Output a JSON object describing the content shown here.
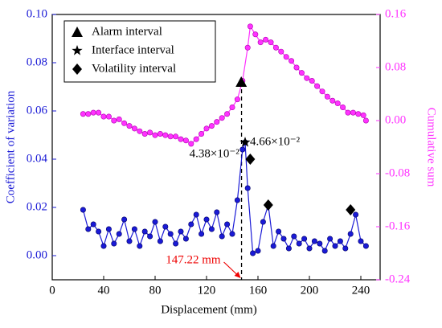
{
  "chart_data": {
    "type": "line",
    "xlabel": "Displacement (mm)",
    "ylabel": "Coefficient of variation",
    "y2label": "Cumulative sum",
    "xlim": [
      0,
      255
    ],
    "xticks": [
      0,
      40,
      80,
      120,
      160,
      200,
      240
    ],
    "ylim": [
      -0.01,
      0.1
    ],
    "yticks": [
      {
        "value": 0,
        "label": "0.00"
      },
      {
        "value": 0.02,
        "label": "0.02"
      },
      {
        "value": 0.04,
        "label": "0.04"
      },
      {
        "value": 0.06,
        "label": "0.06"
      },
      {
        "value": 0.08,
        "label": "0.08"
      },
      {
        "value": 0.1,
        "label": "0.10"
      }
    ],
    "y2lim": [
      -0.24,
      0.16
    ],
    "y2ticks": [
      {
        "value": -0.24,
        "label": "-0.24"
      },
      {
        "value": -0.16,
        "label": "-0.16"
      },
      {
        "value": -0.08,
        "label": "-0.08"
      },
      {
        "value": 0,
        "label": "0.00"
      },
      {
        "value": 0.08,
        "label": "0.08"
      },
      {
        "value": 0.16,
        "label": "0.16"
      }
    ],
    "series": [
      {
        "color": "#1a1ad6",
        "axis": "y",
        "x": [
          24,
          28,
          32,
          36,
          40,
          44,
          48,
          52,
          56,
          60,
          64,
          68,
          72,
          76,
          80,
          84,
          88,
          92,
          96,
          100,
          104,
          108,
          112,
          116,
          120,
          124,
          128,
          132,
          136,
          140,
          144,
          148,
          150,
          152,
          156,
          160,
          164,
          168,
          172,
          176,
          180,
          184,
          188,
          192,
          196,
          200,
          204,
          208,
          212,
          216,
          220,
          224,
          228,
          232,
          236,
          240,
          244
        ],
        "values": [
          0.019,
          0.011,
          0.013,
          0.01,
          0.004,
          0.011,
          0.005,
          0.009,
          0.015,
          0.006,
          0.011,
          0.004,
          0.01,
          0.008,
          0.014,
          0.006,
          0.012,
          0.009,
          0.005,
          0.01,
          0.007,
          0.013,
          0.017,
          0.009,
          0.015,
          0.011,
          0.018,
          0.008,
          0.013,
          0.009,
          0.023,
          0.044,
          0.047,
          0.028,
          0.001,
          0.002,
          0.014,
          0.021,
          0.004,
          0.01,
          0.007,
          0.003,
          0.008,
          0.005,
          0.007,
          0.003,
          0.006,
          0.005,
          0.002,
          0.007,
          0.004,
          0.006,
          0.003,
          0.009,
          0.017,
          0.006,
          0.004
        ]
      },
      {
        "color": "#ff33ff",
        "axis": "y2",
        "x": [
          24,
          28,
          32,
          36,
          40,
          44,
          48,
          52,
          56,
          60,
          64,
          68,
          72,
          76,
          80,
          84,
          88,
          92,
          96,
          100,
          104,
          108,
          112,
          116,
          120,
          124,
          128,
          132,
          136,
          140,
          144,
          148,
          152,
          154,
          158,
          162,
          166,
          170,
          174,
          178,
          182,
          186,
          190,
          194,
          198,
          202,
          206,
          210,
          214,
          218,
          222,
          226,
          230,
          234,
          238,
          242,
          244
        ],
        "values": [
          0.01,
          0.01,
          0.012,
          0.012,
          0.006,
          0.006,
          0.0,
          0.002,
          -0.004,
          -0.008,
          -0.012,
          -0.016,
          -0.02,
          -0.018,
          -0.022,
          -0.02,
          -0.022,
          -0.024,
          -0.024,
          -0.028,
          -0.03,
          -0.035,
          -0.028,
          -0.02,
          -0.012,
          -0.008,
          -0.002,
          0.004,
          0.01,
          0.02,
          0.032,
          0.06,
          0.11,
          0.142,
          0.13,
          0.118,
          0.122,
          0.118,
          0.11,
          0.104,
          0.096,
          0.09,
          0.08,
          0.072,
          0.064,
          0.06,
          0.052,
          0.044,
          0.036,
          0.03,
          0.026,
          0.02,
          0.012,
          0.012,
          0.01,
          0.008,
          0.0
        ]
      }
    ],
    "markers": [
      {
        "name": "Alarm interval",
        "shape": "triangle",
        "x": [
          147
        ],
        "values": [
          0.072
        ]
      },
      {
        "name": "Interface interval",
        "shape": "star",
        "x": [
          150
        ],
        "values": [
          0.047
        ]
      },
      {
        "name": "Volatility interval",
        "shape": "diamond",
        "x": [
          154,
          168,
          232
        ],
        "values": [
          0.04,
          0.021,
          0.019
        ]
      }
    ],
    "annotations": [
      {
        "text": "4.38×10⁻²",
        "x": 148,
        "y": 0.044
      },
      {
        "text": "4.66×10⁻²",
        "x": 150,
        "y": 0.047
      }
    ],
    "threshold": {
      "x": 147.22,
      "label": "147.22 mm"
    }
  }
}
